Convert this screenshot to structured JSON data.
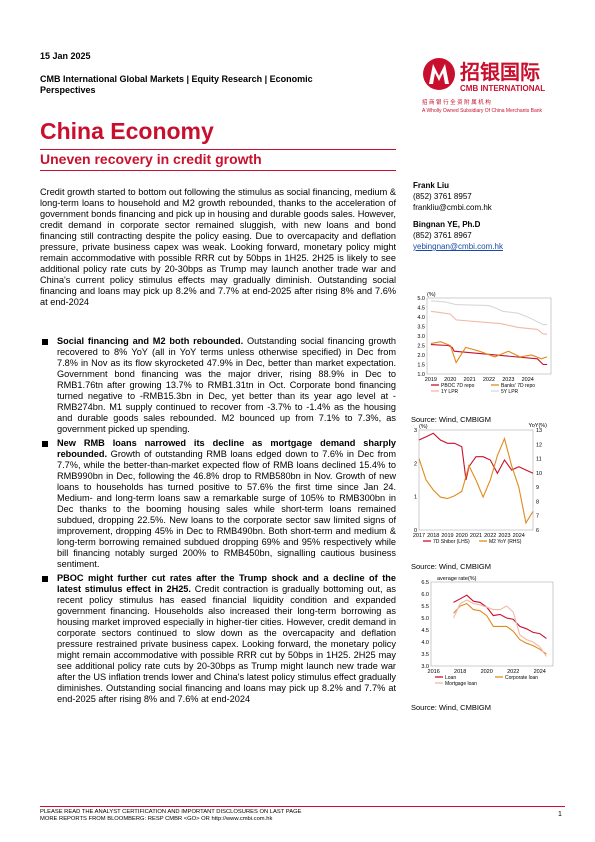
{
  "header": {
    "date": "15 Jan 2025",
    "series": "CMB International Global Markets | Equity Research | Economic Perspectives",
    "title": "China Economy",
    "subtitle": "Uneven recovery in credit growth",
    "logo_cn": "招银国际",
    "logo_en": "CMB INTERNATIONAL",
    "logo_tag_cn": "招 商 银 行 全 资 附 属 机 构",
    "logo_tag_en": "A Wholly Owned Subsidiary Of China Merchants Bank"
  },
  "analysts": [
    {
      "name": "Frank Liu",
      "phone": "(852) 3761 8957",
      "email": "frankliu@cmbi.com.hk"
    },
    {
      "name": "Bingnan YE, Ph.D",
      "phone": "(852) 3761 8967",
      "email": "yebingnan@cmbi.com.hk"
    }
  ],
  "intro": "Credit growth started to bottom out following the stimulus as social financing, medium & long-term loans to household and M2 growth rebounded, thanks to the acceleration of government bonds financing and pick up in housing and durable goods sales. However, credit demand in corporate sector remained sluggish, with new loans and bond financing still contracting despite the policy easing. Due to overcapacity and deflation pressure, private business capex was weak. Looking forward, monetary policy might remain accommodative with possible RRR cut by 50bps in 1H25. 2H25 is likely to see additional policy rate cuts by 20-30bps as Trump may launch another trade war and China's current policy stimulus effects may gradually diminish. Outstanding social financing and loans may pick up 8.2% and 7.7% at end-2025 after rising 8% and 7.6% at end-2024",
  "bullets": [
    {
      "head": "Social financing and M2 both rebounded.",
      "body": " Outstanding social financing growth recovered to 8% YoY (all in YoY terms unless otherwise specified) in Dec from 7.8% in Nov as its flow skyrocketed 47.9% in Dec, better than market expectation. Government bond financing was the major driver, rising 88.9% in Dec to RMB1.76tn after growing 13.7% to RMB1.31tn in Oct. Corporate bond financing turned negative to -RMB15.3bn in Dec, yet better than its year ago level at -RMB274bn. M1 supply continued to recover from -3.7% to -1.4% as the housing and durable goods sales rebounded. M2 bounced up from 7.1% to 7.3%, as government picked up spending."
    },
    {
      "head": "New RMB loans narrowed its decline as mortgage demand sharply rebounded.",
      "body": " Growth of outstanding RMB loans edged down to 7.6% in Dec from 7.7%, while the better-than-market expected flow of RMB loans declined 15.4% to RMB990bn in Dec, following the 46.8% drop to RMB580bn in Nov. Growth of new loans to households has turned positive to 57.6% the first time since Jan 24. Medium- and long-term loans saw a remarkable surge of 105% to RMB300bn in Dec thanks to the booming housing sales while short-term loans remained subdued, dropping 22.5%. New loans to the corporate sector saw limited signs of improvement, dropping 45% in Dec to RMB490bn. Both short-term and medium & long-term borrowing remained subdued dropping 69% and 95% respectively while bill financing notably surged 200% to RMB450bn, signalling cautious business sentiment."
    },
    {
      "head": "PBOC might further cut rates after the Trump shock and a decline of the latest stimulus effect in 2H25.",
      "body": " Credit contraction is gradually bottoming out, as recent policy stimulus has eased financial liquidity condition and expanded government financing. Households also increased their long-term borrowing as housing market improved especially in higher-tier cities. However, credit demand in corporate sectors continued to slow down as the overcapacity and deflation pressure restrained private business capex. Looking forward, the monetary policy might remain accommodative with possible RRR cut by 50bps in 1H25. 2H25 may see additional policy rate cuts by 20-30bps as Trump might launch new trade war after the US inflation trends lower and China's latest policy stimulus effect gradually diminishes. Outstanding social financing and loans may pick up 8.2% and 7.7% at end-2025 after rising 8% and 7.6% at end-2024"
    }
  ],
  "chart_data": [
    {
      "type": "line",
      "ylabel": "(%)",
      "ylim": [
        1.0,
        5.0
      ],
      "yticks": [
        "5.0",
        "4.5",
        "4.0",
        "3.5",
        "3.0",
        "2.5",
        "2.0",
        "1.5",
        "1.0"
      ],
      "xticks": [
        "2019",
        "2020",
        "2021",
        "2022",
        "2023",
        "2024"
      ],
      "legend": [
        "PBOC 7D repo",
        "Banks' 7D repo",
        "1Y LPR",
        "5Y LPR"
      ],
      "series": [
        {
          "name": "PBOC 7D repo",
          "color": "#c8102e",
          "x": [
            2019,
            2019.9,
            2020.1,
            2020.2,
            2024.5,
            2024.8,
            2025.0
          ],
          "y": [
            2.55,
            2.5,
            2.4,
            2.2,
            1.8,
            1.5,
            1.5
          ]
        },
        {
          "name": "Banks' 7D repo",
          "color": "#e08a1e",
          "x": [
            2019,
            2019.5,
            2020.0,
            2020.3,
            2020.8,
            2021.5,
            2022.3,
            2023.0,
            2023.6,
            2024.2,
            2024.7,
            2025.0
          ],
          "y": [
            2.6,
            2.7,
            2.5,
            1.6,
            2.4,
            2.2,
            1.9,
            2.2,
            1.9,
            2.0,
            1.8,
            1.9
          ]
        },
        {
          "name": "1Y LPR",
          "color": "#f2b8a8",
          "x": [
            2019,
            2019.7,
            2020.0,
            2020.3,
            2022.0,
            2022.6,
            2023.5,
            2024.5,
            2024.8,
            2025.0
          ],
          "y": [
            4.3,
            4.2,
            4.15,
            3.85,
            3.7,
            3.65,
            3.45,
            3.35,
            3.1,
            3.1
          ]
        },
        {
          "name": "5Y LPR",
          "color": "#d8d8d8",
          "x": [
            2019,
            2019.7,
            2020.3,
            2022.0,
            2022.4,
            2022.7,
            2023.5,
            2024.1,
            2024.8,
            2025.0
          ],
          "y": [
            4.85,
            4.8,
            4.65,
            4.6,
            4.45,
            4.3,
            4.2,
            3.95,
            3.6,
            3.6
          ]
        }
      ],
      "source": "Source: Wind, CMBIGM"
    },
    {
      "type": "line",
      "ylabel": "(%)",
      "ylabel_right": "YoY(%)",
      "ylim": [
        0,
        3
      ],
      "ylim_right": [
        6,
        13
      ],
      "yticks": [
        "0",
        "1",
        "2",
        "3"
      ],
      "yticks_right": [
        "6",
        "7",
        "8",
        "9",
        "10",
        "11",
        "12",
        "13"
      ],
      "xticks": [
        "2017",
        "2018",
        "2019",
        "2020",
        "2021",
        "2022",
        "2023",
        "2024"
      ],
      "legend": [
        "7D Shibor (LHS)",
        "M2 YoY (RHS)"
      ],
      "series": [
        {
          "name": "7D Shibor (LHS)",
          "axis": "left",
          "color": "#c8102e",
          "x": [
            2017,
            2017.5,
            2018,
            2018.5,
            2019,
            2019.5,
            2020,
            2020.3,
            2020.5,
            2021,
            2021.5,
            2022,
            2022.5,
            2023,
            2023.5,
            2024,
            2024.5,
            2025
          ],
          "y": [
            2.7,
            2.8,
            2.9,
            2.7,
            2.6,
            2.6,
            2.5,
            1.5,
            1.9,
            2.2,
            2.2,
            2.1,
            1.7,
            2.1,
            1.8,
            1.9,
            1.8,
            1.7
          ]
        },
        {
          "name": "M2 YoY (RHS)",
          "axis": "right",
          "color": "#e08a1e",
          "x": [
            2017,
            2017.5,
            2018,
            2018.5,
            2019,
            2019.5,
            2020,
            2020.5,
            2021,
            2021.5,
            2022,
            2022.5,
            2023,
            2023.5,
            2024,
            2024.5,
            2025
          ],
          "y": [
            11.0,
            9.5,
            8.8,
            8.3,
            8.2,
            8.4,
            8.7,
            10.5,
            9.5,
            8.3,
            9.5,
            11.2,
            12.4,
            10.5,
            9.0,
            6.5,
            7.3
          ]
        }
      ],
      "source": "Source: Wind, CMBIGM"
    },
    {
      "type": "line",
      "ylabel": "average rate(%)",
      "ylim": [
        3.0,
        6.5
      ],
      "yticks": [
        "6.5",
        "6.0",
        "5.5",
        "5.0",
        "4.5",
        "4.0",
        "3.5",
        "3.0"
      ],
      "xticks": [
        "2016",
        "2018",
        "2020",
        "2022",
        "2024"
      ],
      "legend": [
        "Loan",
        "Corporate loan",
        "Mortgage loan"
      ],
      "series": [
        {
          "name": "Loan",
          "color": "#c8102e",
          "x": [
            2017.5,
            2018.0,
            2018.5,
            2019.0,
            2019.5,
            2020.0,
            2020.5,
            2021.0,
            2021.5,
            2022.0,
            2022.5,
            2023.0,
            2023.5,
            2024.0,
            2024.5
          ],
          "y": [
            5.65,
            5.8,
            5.95,
            5.7,
            5.65,
            5.45,
            5.1,
            5.15,
            5.0,
            4.95,
            4.65,
            4.55,
            4.4,
            4.35,
            4.15
          ]
        },
        {
          "name": "Corporate loan",
          "color": "#e08a1e",
          "x": [
            2017.5,
            2018.0,
            2018.5,
            2019.0,
            2019.5,
            2020.0,
            2020.5,
            2021.0,
            2021.5,
            2022.0,
            2022.5,
            2023.0,
            2023.5,
            2024.0,
            2024.5
          ],
          "y": [
            5.2,
            5.5,
            5.6,
            5.35,
            5.3,
            5.1,
            4.65,
            4.65,
            4.65,
            4.45,
            4.1,
            3.95,
            3.85,
            3.7,
            3.5
          ]
        },
        {
          "name": "Mortgage loan",
          "color": "#f2b8a8",
          "x": [
            2017.5,
            2018.0,
            2018.5,
            2019.0,
            2019.5,
            2020.0,
            2020.5,
            2021.0,
            2021.5,
            2022.0,
            2022.5,
            2023.0,
            2023.5,
            2024.0,
            2024.5
          ],
          "y": [
            5.0,
            5.6,
            5.75,
            5.6,
            5.55,
            5.45,
            5.35,
            5.35,
            5.5,
            5.25,
            4.3,
            4.1,
            4.0,
            3.8,
            3.4
          ]
        }
      ],
      "source": "Source: Wind, CMBIGM"
    }
  ],
  "footer": {
    "line1": "PLEASE READ THE ANALYST CERTIFICATION AND IMPORTANT DISCLOSURES ON LAST PAGE",
    "line2": "MORE REPORTS FROM BLOOMBERG: RESP CMBR <GO> OR http://www.cmbi.com.hk",
    "page": "1"
  }
}
